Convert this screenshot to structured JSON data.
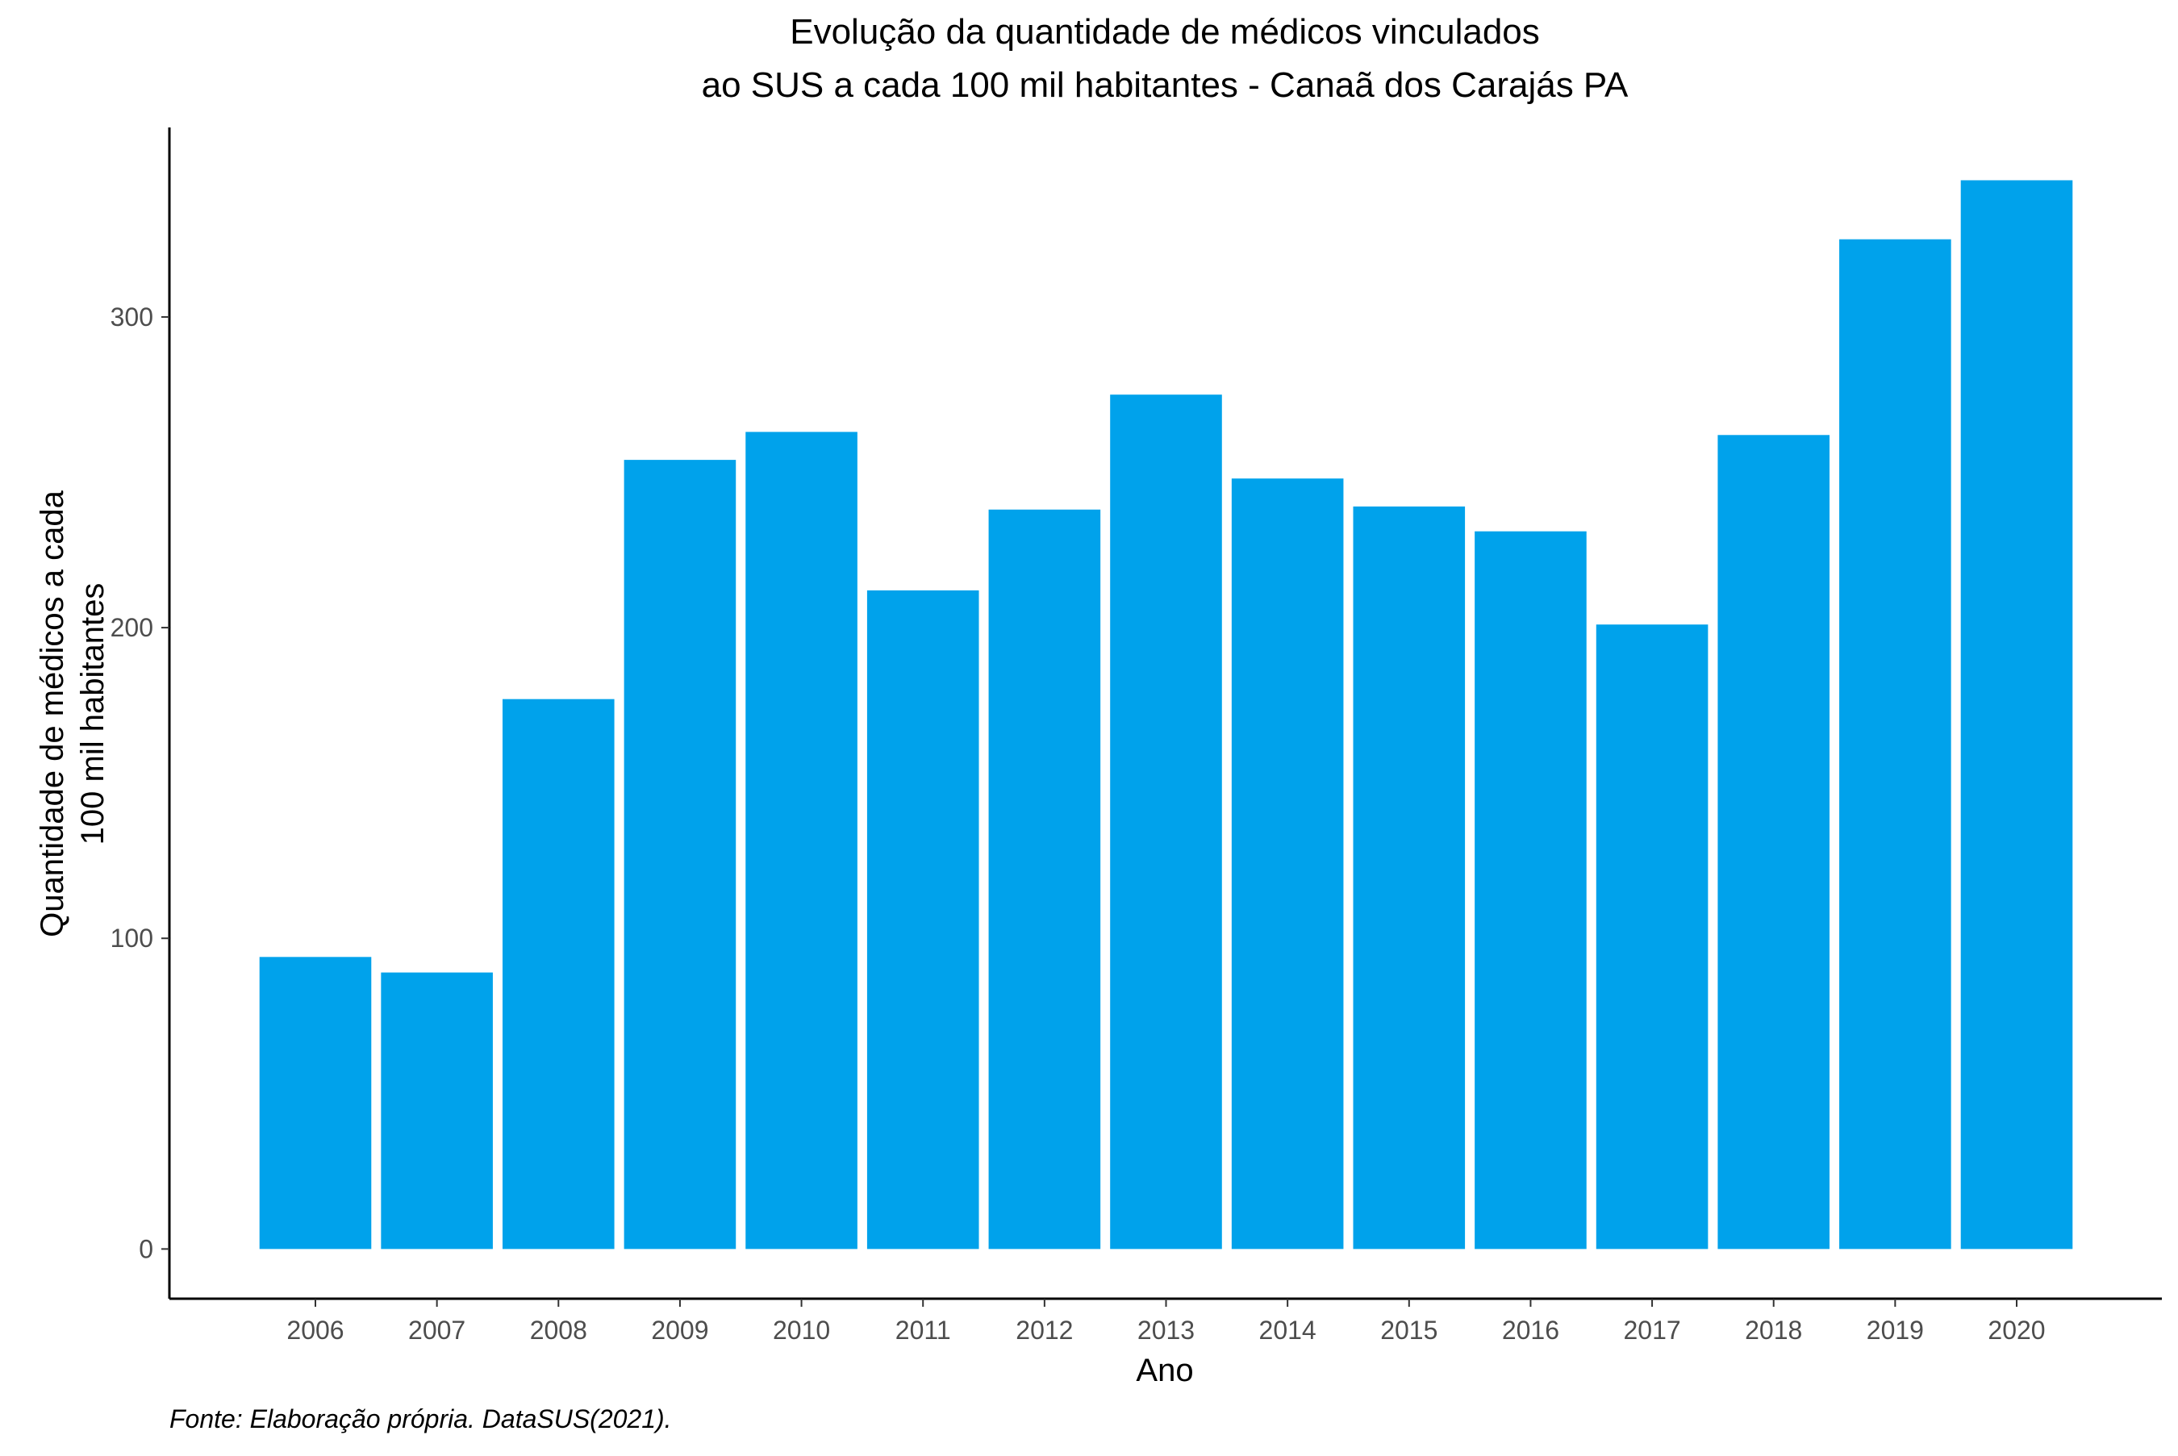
{
  "chart_data": {
    "type": "bar",
    "title_lines": [
      "Evolução da quantidade de médicos vinculados",
      "ao SUS a cada 100 mil habitantes - Canaã dos Carajás PA"
    ],
    "xlabel": "Ano",
    "ylabel_lines": [
      "Quantidade de médicos a cada",
      "100 mil habitantes"
    ],
    "caption": "Fonte: Elaboração própria. DataSUS(2021).",
    "categories": [
      "2006",
      "2007",
      "2008",
      "2009",
      "2010",
      "2011",
      "2012",
      "2013",
      "2014",
      "2015",
      "2016",
      "2017",
      "2018",
      "2019",
      "2020"
    ],
    "values": [
      94,
      89,
      177,
      254,
      263,
      212,
      238,
      275,
      248,
      239,
      231,
      201,
      262,
      325,
      344
    ],
    "ylim": [
      -16,
      361
    ],
    "yticks": [
      0,
      100,
      200,
      300
    ],
    "bar_color": "#00A2EB",
    "grid": false,
    "legend": "none"
  }
}
